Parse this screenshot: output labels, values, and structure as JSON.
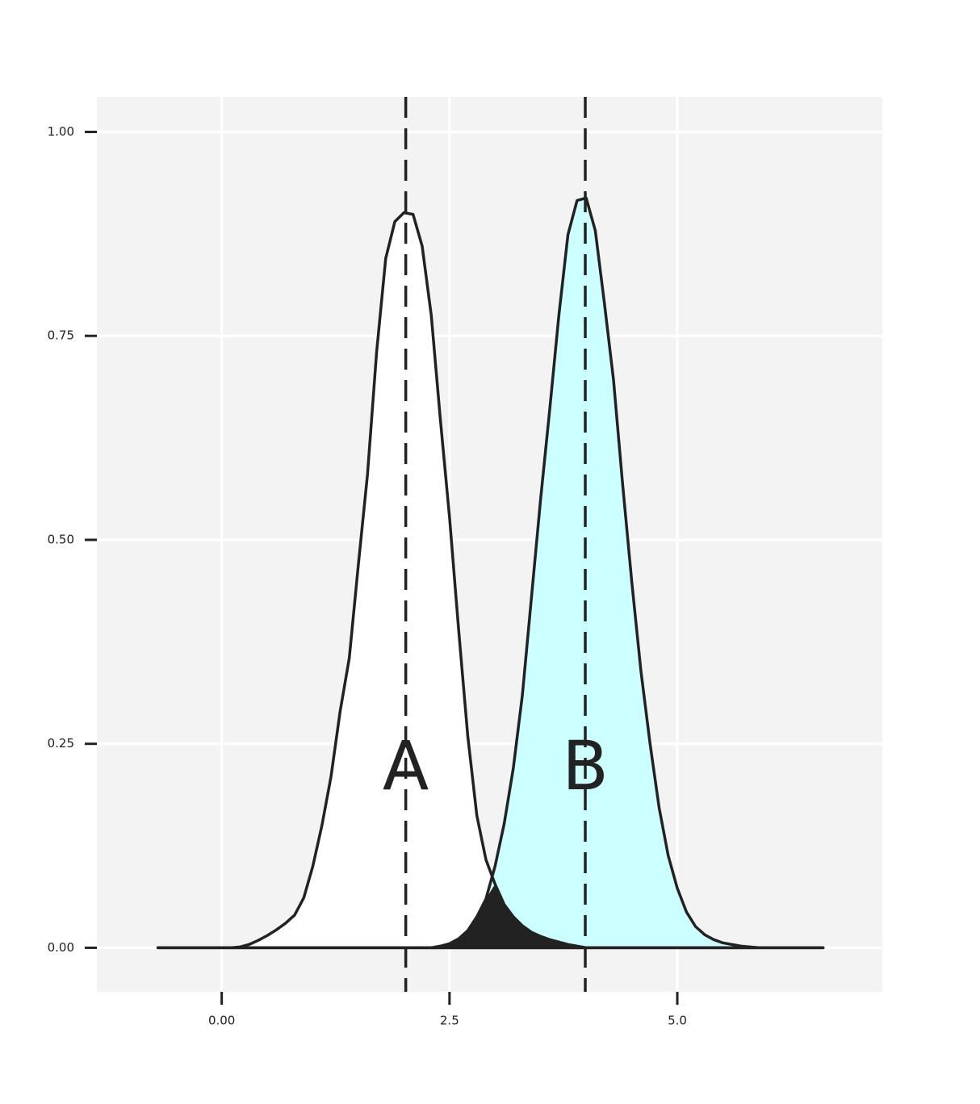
{
  "chart_data": {
    "type": "density",
    "x": [
      -0.7,
      -0.6,
      -0.5,
      -0.4,
      -0.3,
      -0.2,
      -0.1,
      0.0,
      0.1,
      0.2,
      0.3,
      0.4,
      0.5,
      0.6,
      0.7,
      0.8,
      0.9,
      1.0,
      1.1,
      1.2,
      1.3,
      1.4,
      1.5,
      1.6,
      1.7,
      1.8,
      1.9,
      2.0,
      2.1,
      2.2,
      2.3,
      2.4,
      2.5,
      2.6,
      2.7,
      2.8,
      2.9,
      3.0,
      3.1,
      3.2,
      3.3,
      3.4,
      3.5,
      3.6,
      3.7,
      3.8,
      3.9,
      4.0,
      4.1,
      4.2,
      4.3,
      4.4,
      4.5,
      4.6,
      4.7,
      4.8,
      4.9,
      5.0,
      5.1,
      5.2,
      5.3,
      5.4,
      5.5,
      5.6,
      5.7,
      5.8,
      5.9,
      6.0,
      6.1,
      6.2,
      6.3,
      6.4,
      6.5,
      6.6
    ],
    "series": [
      {
        "name": "A",
        "color": "#ffffff",
        "mean": 2.02,
        "values": [
          0,
          0,
          0,
          0,
          0,
          0,
          0,
          0,
          0,
          0.001,
          0.004,
          0.009,
          0.015,
          0.022,
          0.03,
          0.04,
          0.061,
          0.1,
          0.15,
          0.21,
          0.29,
          0.355,
          0.47,
          0.58,
          0.73,
          0.845,
          0.89,
          0.901,
          0.899,
          0.86,
          0.775,
          0.647,
          0.528,
          0.39,
          0.26,
          0.162,
          0.108,
          0.078,
          0.053,
          0.038,
          0.027,
          0.019,
          0.014,
          0.01,
          0.007,
          0.004,
          0.002,
          0,
          0,
          0,
          0,
          0,
          0,
          0,
          0,
          0,
          0,
          0,
          0,
          0,
          0,
          0,
          0,
          0,
          0,
          0,
          0,
          0,
          0,
          0,
          0,
          0,
          0,
          0
        ]
      },
      {
        "name": "B",
        "color": "#ccffff",
        "mean": 3.99,
        "values": [
          0,
          0,
          0,
          0,
          0,
          0,
          0,
          0,
          0,
          0,
          0,
          0,
          0,
          0,
          0,
          0,
          0,
          0,
          0,
          0,
          0,
          0,
          0,
          0,
          0,
          0,
          0,
          0,
          0,
          0,
          0,
          0.002,
          0.005,
          0.011,
          0.021,
          0.038,
          0.06,
          0.1,
          0.152,
          0.22,
          0.31,
          0.43,
          0.55,
          0.66,
          0.775,
          0.874,
          0.916,
          0.919,
          0.879,
          0.79,
          0.696,
          0.568,
          0.449,
          0.34,
          0.251,
          0.172,
          0.113,
          0.073,
          0.044,
          0.026,
          0.016,
          0.01,
          0.006,
          0.004,
          0.002,
          0.001,
          0,
          0,
          0,
          0,
          0,
          0,
          0,
          0
        ]
      }
    ],
    "overlap_color": "#222222",
    "xlim": [
      -1.37,
      7.25
    ],
    "xticks": [
      {
        "value": 0,
        "label": "0.00"
      },
      2.5,
      {
        "value": 5,
        "label": "5.0"
      }
    ],
    "ylim": [
      -0.054,
      1.043
    ],
    "yticks": [
      {
        "value": 0,
        "label": "0.00"
      },
      {
        "value": 0.25,
        "label": "0.25"
      },
      {
        "value": 0.5,
        "label": "0.50"
      },
      {
        "value": 0.75,
        "label": "0.75"
      },
      {
        "value": 1,
        "label": "1.00"
      }
    ],
    "grid": true
  }
}
